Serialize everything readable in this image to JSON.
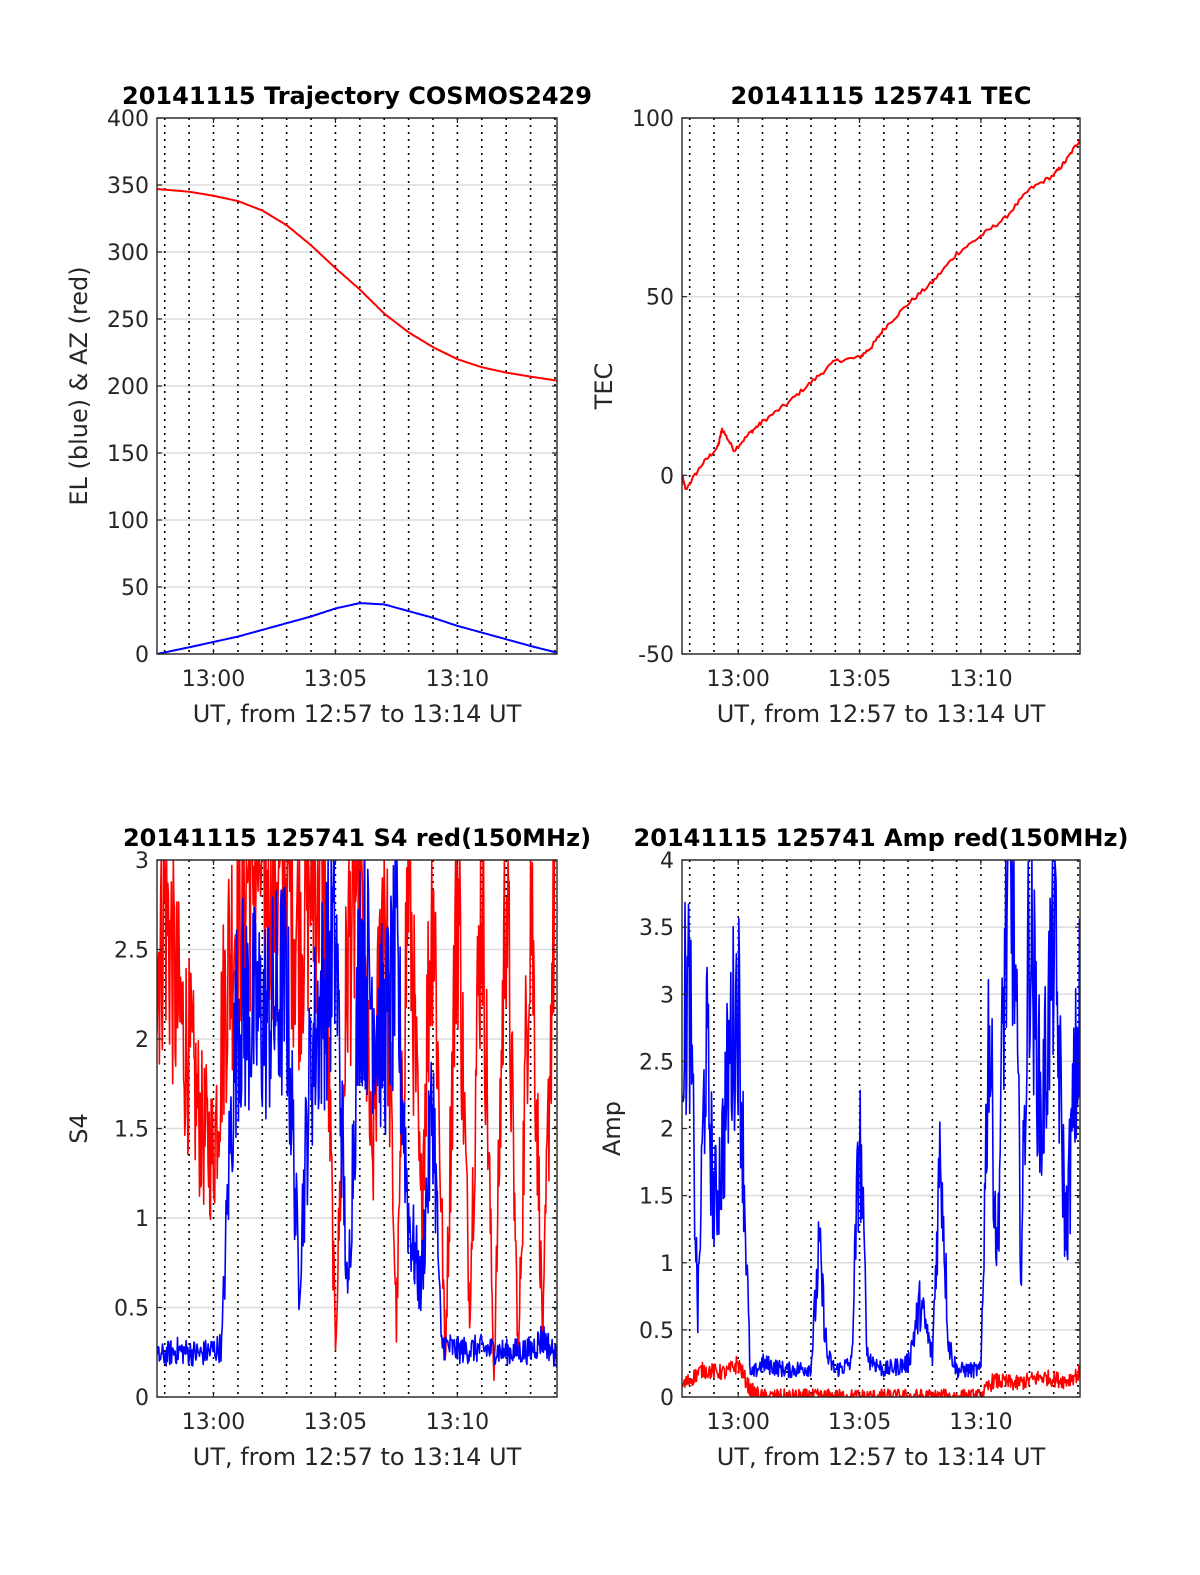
{
  "chart_data": [
    {
      "type": "line",
      "title": "20141115 Trajectory COSMOS2429",
      "xlabel": "UT, from 12:57 to 13:14 UT",
      "ylabel": "EL (blue) & AZ (red)",
      "xlim": [
        "12:57:41",
        "13:14:05"
      ],
      "ylim": [
        0,
        400
      ],
      "xticks": [
        "13:00",
        "13:05",
        "13:10"
      ],
      "yticks": [
        "0",
        "50",
        "100",
        "150",
        "200",
        "250",
        "300",
        "350",
        "400"
      ],
      "grid": "vertical dotted every minute, horizontal light",
      "series": [
        {
          "color": "#ff0000",
          "x": [
            "12:57:41",
            "12:59:00",
            "13:00:00",
            "13:01:00",
            "13:02:00",
            "13:03:00",
            "13:04:00",
            "13:05:00",
            "13:06:00",
            "13:07:00",
            "13:08:00",
            "13:09:00",
            "13:10:00",
            "13:11:00",
            "13:12:00",
            "13:13:00",
            "13:14:05"
          ],
          "values": [
            347,
            345,
            342,
            338,
            331,
            320,
            305,
            288,
            272,
            254,
            240,
            229,
            220,
            214,
            210,
            207,
            204
          ]
        },
        {
          "color": "#0000ff",
          "x": [
            "12:57:41",
            "12:59:00",
            "13:00:00",
            "13:01:00",
            "13:02:00",
            "13:03:00",
            "13:04:00",
            "13:05:00",
            "13:06:00",
            "13:07:00",
            "13:08:00",
            "13:09:00",
            "13:10:00",
            "13:11:00",
            "13:12:00",
            "13:13:00",
            "13:14:05"
          ],
          "values": [
            0,
            5,
            9,
            13,
            18,
            23,
            28,
            34,
            38,
            37,
            32,
            27,
            21,
            16,
            11,
            6,
            1
          ]
        }
      ]
    },
    {
      "type": "line",
      "title": "20141115 125741 TEC",
      "xlabel": "UT, from 12:57 to 13:14 UT",
      "ylabel": "TEC",
      "xlim": [
        "12:57:41",
        "13:14:05"
      ],
      "ylim": [
        -50,
        100
      ],
      "xticks": [
        "13:00",
        "13:05",
        "13:10"
      ],
      "yticks": [
        "-50",
        "0",
        "50",
        "100"
      ],
      "series": [
        {
          "color": "#ff0000",
          "x": [
            "12:57:41",
            "12:57:50",
            "12:58:30",
            "12:59:10",
            "12:59:20",
            "12:59:50",
            "13:00:30",
            "13:01:00",
            "13:02:00",
            "13:03:00",
            "13:04:00",
            "13:05:00",
            "13:05:30",
            "13:06:00",
            "13:07:00",
            "13:08:00",
            "13:09:00",
            "13:10:00",
            "13:11:00",
            "13:12:00",
            "13:13:00",
            "13:13:30",
            "13:14:05"
          ],
          "values": [
            0,
            -4,
            3,
            8,
            13,
            7,
            12,
            15,
            20,
            26,
            32,
            33,
            36,
            41,
            48,
            54,
            62,
            67,
            72,
            80,
            84,
            88,
            94
          ]
        }
      ]
    },
    {
      "type": "line",
      "title": "20141115 125741 S4 red(150MHz)",
      "xlabel": "UT, from 12:57 to 13:14 UT",
      "ylabel": "S4",
      "xlim": [
        "12:57:41",
        "13:14:05"
      ],
      "ylim": [
        0,
        3
      ],
      "xticks": [
        "13:00",
        "13:05",
        "13:10"
      ],
      "yticks": [
        "0",
        "0.5",
        "1",
        "1.5",
        "2",
        "2.5",
        "3"
      ],
      "series": [
        {
          "color": "#ff0000",
          "x": [
            "12:57:41",
            "12:58:00",
            "12:58:30",
            "12:59:00",
            "12:59:30",
            "13:00:00",
            "13:00:30",
            "13:01:00",
            "13:01:30",
            "13:02:00",
            "13:02:30",
            "13:03:00",
            "13:03:30",
            "13:04:00",
            "13:04:30",
            "13:05:00",
            "13:05:30",
            "13:06:00",
            "13:06:30",
            "13:07:00",
            "13:07:30",
            "13:08:00",
            "13:08:30",
            "13:09:00",
            "13:09:30",
            "13:10:00",
            "13:10:30",
            "13:11:00",
            "13:11:30",
            "13:12:00",
            "13:12:30",
            "13:13:00",
            "13:13:30",
            "13:14:00"
          ],
          "values": [
            2.4,
            2.8,
            2.2,
            1.9,
            1.5,
            1.35,
            2.3,
            2.8,
            3.0,
            3.0,
            3.0,
            3.0,
            2.6,
            3.0,
            3.0,
            0.3,
            2.5,
            3.0,
            1.2,
            3.0,
            0.4,
            3.0,
            1.0,
            3.0,
            0.2,
            3.0,
            0.5,
            3.0,
            0.1,
            3.0,
            0.2,
            3.0,
            0.3,
            3.0
          ]
        },
        {
          "color": "#0000ff",
          "x": [
            "12:57:41",
            "12:58:30",
            "12:59:30",
            "13:00:20",
            "13:00:40",
            "13:01:00",
            "13:02:00",
            "13:03:00",
            "13:03:30",
            "13:04:00",
            "13:05:00",
            "13:05:30",
            "13:06:00",
            "13:07:00",
            "13:07:30",
            "13:08:00",
            "13:08:30",
            "13:09:00",
            "13:09:20",
            "13:10:00",
            "13:11:00",
            "13:12:00",
            "13:13:00",
            "13:13:30",
            "13:14:05"
          ],
          "values": [
            0.22,
            0.26,
            0.24,
            0.28,
            1.4,
            2.2,
            2.1,
            2.3,
            0.65,
            1.9,
            2.6,
            0.5,
            2.5,
            2.0,
            2.4,
            1.0,
            0.6,
            1.7,
            0.3,
            0.26,
            0.27,
            0.25,
            0.26,
            0.33,
            0.22
          ]
        }
      ]
    },
    {
      "type": "line",
      "title": "20141115 125741 Amp red(150MHz)",
      "xlabel": "UT, from 12:57 to 13:14 UT",
      "ylabel": "Amp",
      "xlim": [
        "12:57:41",
        "13:14:05"
      ],
      "ylim": [
        0,
        4
      ],
      "xticks": [
        "13:00",
        "13:05",
        "13:10"
      ],
      "yticks": [
        "0",
        "0.5",
        "1",
        "1.5",
        "2",
        "2.5",
        "3",
        "3.5",
        "4"
      ],
      "series": [
        {
          "color": "#0000ff",
          "x": [
            "12:57:41",
            "12:58:00",
            "12:58:20",
            "12:58:40",
            "12:59:00",
            "12:59:20",
            "12:59:40",
            "13:00:00",
            "13:00:30",
            "13:01:00",
            "13:02:00",
            "13:03:00",
            "13:03:20",
            "13:03:40",
            "13:04:00",
            "13:04:40",
            "13:05:00",
            "13:05:20",
            "13:06:00",
            "13:07:00",
            "13:07:30",
            "13:08:00",
            "13:08:20",
            "13:08:40",
            "13:09:00",
            "13:10:00",
            "13:10:20",
            "13:10:40",
            "13:11:00",
            "13:11:20",
            "13:11:40",
            "13:12:00",
            "13:12:30",
            "13:13:00",
            "13:13:30",
            "13:14:05"
          ],
          "values": [
            2.8,
            3.0,
            0.6,
            2.7,
            1.4,
            1.8,
            2.6,
            3.0,
            0.15,
            0.25,
            0.2,
            0.22,
            1.1,
            0.3,
            0.2,
            0.25,
            2.0,
            0.3,
            0.2,
            0.25,
            0.7,
            0.3,
            1.9,
            0.4,
            0.2,
            0.2,
            2.9,
            1.0,
            3.4,
            3.8,
            1.0,
            3.6,
            2.0,
            3.5,
            1.2,
            2.9
          ]
        },
        {
          "color": "#ff0000",
          "x": [
            "12:57:41",
            "12:58:30",
            "12:59:30",
            "13:00:00",
            "13:00:30",
            "13:01:00",
            "13:05:00",
            "13:10:00",
            "13:10:30",
            "13:11:30",
            "13:12:30",
            "13:13:30",
            "13:14:05"
          ],
          "values": [
            0.08,
            0.2,
            0.18,
            0.25,
            0.05,
            0.0,
            0.0,
            0.0,
            0.12,
            0.1,
            0.15,
            0.12,
            0.18
          ]
        }
      ]
    }
  ]
}
